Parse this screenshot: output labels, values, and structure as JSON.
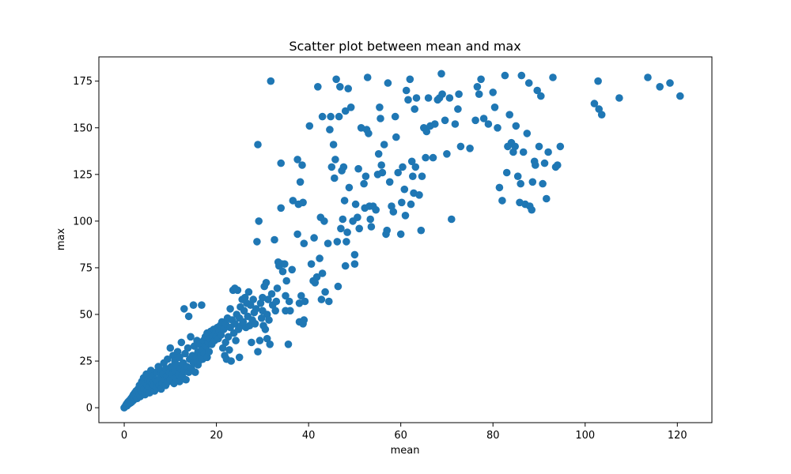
{
  "chart_data": {
    "type": "scatter",
    "title": "Scatter plot between mean and max",
    "xlabel": "mean",
    "ylabel": "max",
    "xlim": [
      -5.5,
      127.5
    ],
    "ylim": [
      -8,
      188
    ],
    "xticks": [
      0,
      20,
      40,
      60,
      80,
      100,
      120
    ],
    "yticks": [
      0,
      25,
      50,
      75,
      100,
      125,
      150,
      175
    ],
    "grid": false,
    "legend": "none",
    "marker_color": "#1f77b4",
    "points": [
      [
        0,
        0
      ],
      [
        0.2,
        0.5
      ],
      [
        0.3,
        1
      ],
      [
        0.4,
        1.5
      ],
      [
        0.5,
        2
      ],
      [
        0.6,
        1
      ],
      [
        0.7,
        2.5
      ],
      [
        0.8,
        3
      ],
      [
        1,
        2
      ],
      [
        1,
        3.5
      ],
      [
        1.2,
        4
      ],
      [
        1.3,
        2.5
      ],
      [
        1.5,
        5
      ],
      [
        1.6,
        3
      ],
      [
        1.8,
        6
      ],
      [
        2,
        4
      ],
      [
        2,
        7
      ],
      [
        2.2,
        5
      ],
      [
        2.3,
        8
      ],
      [
        2.5,
        6
      ],
      [
        2.6,
        9
      ],
      [
        2.8,
        5
      ],
      [
        3,
        7
      ],
      [
        3,
        10
      ],
      [
        3.2,
        8
      ],
      [
        3.3,
        12
      ],
      [
        3.5,
        6
      ],
      [
        3.6,
        9
      ],
      [
        3.8,
        14
      ],
      [
        4,
        8
      ],
      [
        4,
        11
      ],
      [
        4.2,
        16
      ],
      [
        4.3,
        10
      ],
      [
        4.5,
        7
      ],
      [
        4.6,
        13
      ],
      [
        4.8,
        18
      ],
      [
        5,
        9
      ],
      [
        5,
        12
      ],
      [
        5.2,
        15
      ],
      [
        5.4,
        11
      ],
      [
        5.5,
        8
      ],
      [
        5.7,
        14
      ],
      [
        5.8,
        20
      ],
      [
        6,
        10
      ],
      [
        6,
        13
      ],
      [
        6.2,
        17
      ],
      [
        6.4,
        12
      ],
      [
        6.6,
        9
      ],
      [
        6.8,
        15
      ],
      [
        7,
        11
      ],
      [
        7,
        19
      ],
      [
        7.2,
        14
      ],
      [
        7.4,
        22
      ],
      [
        7.6,
        12
      ],
      [
        7.8,
        16
      ],
      [
        8,
        10
      ],
      [
        8,
        20
      ],
      [
        8.2,
        13
      ],
      [
        8.4,
        18
      ],
      [
        8.6,
        24
      ],
      [
        8.8,
        15
      ],
      [
        9,
        12
      ],
      [
        9,
        21
      ],
      [
        9.2,
        17
      ],
      [
        9.4,
        26
      ],
      [
        9.6,
        14
      ],
      [
        9.8,
        19
      ],
      [
        10,
        32
      ],
      [
        10,
        15
      ],
      [
        10.2,
        22
      ],
      [
        10.4,
        18
      ],
      [
        10.6,
        28
      ],
      [
        10.8,
        13
      ],
      [
        11,
        20
      ],
      [
        11,
        25
      ],
      [
        11.2,
        16
      ],
      [
        11.4,
        23
      ],
      [
        11.6,
        30
      ],
      [
        11.8,
        18
      ],
      [
        12,
        14
      ],
      [
        12,
        27
      ],
      [
        12.2,
        21
      ],
      [
        12.4,
        35
      ],
      [
        12.6,
        17
      ],
      [
        12.8,
        24
      ],
      [
        13,
        20
      ],
      [
        13,
        53
      ],
      [
        13.2,
        29
      ],
      [
        13.4,
        15
      ],
      [
        13.6,
        22
      ],
      [
        13.8,
        32
      ],
      [
        14,
        19
      ],
      [
        14,
        49
      ],
      [
        14.2,
        26
      ],
      [
        14.4,
        38
      ],
      [
        14.6,
        21
      ],
      [
        14.8,
        28
      ],
      [
        15,
        24
      ],
      [
        15,
        55
      ],
      [
        15.2,
        33
      ],
      [
        15.4,
        19
      ],
      [
        15.6,
        27
      ],
      [
        15.8,
        36
      ],
      [
        16,
        23
      ],
      [
        16,
        30
      ],
      [
        16.2,
        25
      ],
      [
        16.4,
        34
      ],
      [
        16.6,
        28
      ],
      [
        16.8,
        55
      ],
      [
        17,
        31
      ],
      [
        17,
        26
      ],
      [
        17.2,
        36
      ],
      [
        17.4,
        29
      ],
      [
        17.6,
        38
      ],
      [
        17.8,
        33
      ],
      [
        18,
        27
      ],
      [
        18,
        40
      ],
      [
        18.2,
        35
      ],
      [
        18.4,
        30
      ],
      [
        18.6,
        37
      ],
      [
        18.8,
        41
      ],
      [
        19,
        34
      ],
      [
        19.2,
        38
      ],
      [
        19.4,
        42
      ],
      [
        19.6,
        36
      ],
      [
        19.8,
        40
      ],
      [
        20,
        38
      ],
      [
        20.2,
        43
      ],
      [
        20.4,
        37
      ],
      [
        20.6,
        41
      ],
      [
        20.8,
        44
      ],
      [
        21,
        39
      ],
      [
        21.2,
        46
      ],
      [
        21.4,
        32
      ],
      [
        21.6,
        42
      ],
      [
        21.8,
        28
      ],
      [
        22,
        45
      ],
      [
        22,
        35
      ],
      [
        22.2,
        26
      ],
      [
        22.4,
        48
      ],
      [
        22.6,
        38
      ],
      [
        22.8,
        31
      ],
      [
        23,
        43
      ],
      [
        23,
        53
      ],
      [
        23.2,
        25
      ],
      [
        23.4,
        47
      ],
      [
        23.6,
        63
      ],
      [
        23.8,
        40
      ],
      [
        24,
        45
      ],
      [
        24,
        64
      ],
      [
        24.2,
        36
      ],
      [
        24.4,
        50
      ],
      [
        24.6,
        63
      ],
      [
        24.8,
        42
      ],
      [
        25,
        27
      ],
      [
        25,
        48
      ],
      [
        25.2,
        54
      ],
      [
        25.4,
        44
      ],
      [
        25.6,
        58
      ],
      [
        25.8,
        46
      ],
      [
        26,
        52
      ],
      [
        26.2,
        59
      ],
      [
        26.4,
        43
      ],
      [
        26.6,
        56
      ],
      [
        26.8,
        49
      ],
      [
        27,
        62
      ],
      [
        27.2,
        44
      ],
      [
        27.4,
        55
      ],
      [
        27.6,
        35
      ],
      [
        27.8,
        47
      ],
      [
        28,
        58
      ],
      [
        28.2,
        51
      ],
      [
        28.4,
        45
      ],
      [
        28.6,
        53
      ],
      [
        28.8,
        89
      ],
      [
        29,
        30
      ],
      [
        29,
        141
      ],
      [
        29.2,
        100
      ],
      [
        29.4,
        36
      ],
      [
        29.6,
        56
      ],
      [
        29.8,
        48
      ],
      [
        30,
        52
      ],
      [
        30,
        59
      ],
      [
        30.2,
        44
      ],
      [
        30.4,
        65
      ],
      [
        30.6,
        42
      ],
      [
        30.8,
        67
      ],
      [
        31,
        37
      ],
      [
        31,
        50
      ],
      [
        31.2,
        58
      ],
      [
        31.4,
        47
      ],
      [
        31.6,
        34
      ],
      [
        31.8,
        175
      ],
      [
        32,
        61
      ],
      [
        32.2,
        55
      ],
      [
        32.6,
        90
      ],
      [
        32.8,
        52
      ],
      [
        33,
        57
      ],
      [
        33.2,
        64
      ],
      [
        33.4,
        78
      ],
      [
        33.6,
        76
      ],
      [
        34,
        131
      ],
      [
        34,
        107
      ],
      [
        34.2,
        77
      ],
      [
        34.4,
        73
      ],
      [
        34.8,
        77
      ],
      [
        35,
        52
      ],
      [
        35,
        60
      ],
      [
        35.2,
        68
      ],
      [
        35.6,
        34
      ],
      [
        35.8,
        57
      ],
      [
        36,
        52
      ],
      [
        36.4,
        74
      ],
      [
        36.6,
        111
      ],
      [
        37.6,
        133
      ],
      [
        37.6,
        93
      ],
      [
        37.8,
        109
      ],
      [
        38,
        46
      ],
      [
        38,
        56
      ],
      [
        38.2,
        121
      ],
      [
        38.4,
        60
      ],
      [
        38.6,
        130
      ],
      [
        38.8,
        45
      ],
      [
        38.8,
        110
      ],
      [
        39,
        88
      ],
      [
        39,
        47
      ],
      [
        39.2,
        57
      ],
      [
        40.2,
        151
      ],
      [
        40.6,
        77
      ],
      [
        41,
        68
      ],
      [
        41.2,
        91
      ],
      [
        41.4,
        67
      ],
      [
        41.8,
        70
      ],
      [
        42,
        172
      ],
      [
        42.4,
        80
      ],
      [
        42.6,
        102
      ],
      [
        42.8,
        58
      ],
      [
        43,
        156
      ],
      [
        43,
        72
      ],
      [
        43.4,
        100
      ],
      [
        43.6,
        62
      ],
      [
        44.2,
        88
      ],
      [
        44.4,
        57
      ],
      [
        44.6,
        149
      ],
      [
        44.8,
        156
      ],
      [
        45,
        129
      ],
      [
        45.4,
        141
      ],
      [
        45.6,
        123
      ],
      [
        45.8,
        133
      ],
      [
        46,
        176
      ],
      [
        46.2,
        89
      ],
      [
        46.4,
        65
      ],
      [
        46.6,
        156
      ],
      [
        46.8,
        172
      ],
      [
        47,
        96
      ],
      [
        47.2,
        127
      ],
      [
        47.4,
        101
      ],
      [
        47.6,
        129
      ],
      [
        47.8,
        111
      ],
      [
        48,
        159
      ],
      [
        48,
        76
      ],
      [
        48.2,
        89
      ],
      [
        48.4,
        94
      ],
      [
        48.6,
        171
      ],
      [
        48.8,
        118
      ],
      [
        49.2,
        161
      ],
      [
        49.6,
        100
      ],
      [
        50,
        77
      ],
      [
        50,
        82
      ],
      [
        50.2,
        109
      ],
      [
        50.6,
        102
      ],
      [
        50.8,
        128
      ],
      [
        51,
        96
      ],
      [
        51.4,
        150
      ],
      [
        52,
        120
      ],
      [
        52.2,
        107
      ],
      [
        52.4,
        124
      ],
      [
        52.6,
        149
      ],
      [
        52.8,
        177
      ],
      [
        53,
        147
      ],
      [
        53.2,
        108
      ],
      [
        53.4,
        101
      ],
      [
        53.6,
        97
      ],
      [
        54,
        108
      ],
      [
        54.6,
        106
      ],
      [
        55,
        125
      ],
      [
        55.2,
        136
      ],
      [
        55.4,
        161
      ],
      [
        55.6,
        155
      ],
      [
        55.8,
        130
      ],
      [
        56,
        126
      ],
      [
        56.4,
        141
      ],
      [
        56.8,
        93
      ],
      [
        57,
        95
      ],
      [
        57.2,
        174
      ],
      [
        57.6,
        121
      ],
      [
        58,
        108
      ],
      [
        58.4,
        105
      ],
      [
        58.8,
        156
      ],
      [
        59,
        145
      ],
      [
        59.4,
        126
      ],
      [
        60,
        93
      ],
      [
        60.2,
        110
      ],
      [
        60.4,
        129
      ],
      [
        60.8,
        117
      ],
      [
        61,
        103
      ],
      [
        61.2,
        170
      ],
      [
        61.6,
        165
      ],
      [
        62,
        176
      ],
      [
        62.2,
        109
      ],
      [
        62.4,
        132
      ],
      [
        62.6,
        124
      ],
      [
        62.8,
        115
      ],
      [
        63,
        160
      ],
      [
        63.2,
        129
      ],
      [
        63.4,
        166
      ],
      [
        64,
        114
      ],
      [
        64.4,
        95
      ],
      [
        64.6,
        124
      ],
      [
        65,
        150
      ],
      [
        65.4,
        134
      ],
      [
        65.6,
        148
      ],
      [
        66,
        166
      ],
      [
        66.4,
        151
      ],
      [
        67,
        134
      ],
      [
        67.4,
        152
      ],
      [
        68,
        165
      ],
      [
        68.4,
        166
      ],
      [
        68.8,
        179
      ],
      [
        69,
        168
      ],
      [
        69.6,
        154
      ],
      [
        70,
        136
      ],
      [
        70.6,
        166
      ],
      [
        71,
        101
      ],
      [
        71.8,
        152
      ],
      [
        72.4,
        160
      ],
      [
        72.6,
        168
      ],
      [
        73,
        140
      ],
      [
        75,
        139
      ],
      [
        76.2,
        154
      ],
      [
        76.6,
        172
      ],
      [
        77,
        168
      ],
      [
        77.4,
        176
      ],
      [
        78,
        155
      ],
      [
        79,
        152
      ],
      [
        80,
        169
      ],
      [
        80.4,
        161
      ],
      [
        81,
        150
      ],
      [
        81.4,
        118
      ],
      [
        82,
        111
      ],
      [
        82.6,
        178
      ],
      [
        83,
        126
      ],
      [
        83.2,
        140
      ],
      [
        83.6,
        157
      ],
      [
        84,
        142
      ],
      [
        84.4,
        137
      ],
      [
        84.8,
        140
      ],
      [
        85,
        151
      ],
      [
        85.4,
        124
      ],
      [
        85.8,
        110
      ],
      [
        86,
        120
      ],
      [
        86.2,
        178
      ],
      [
        86.6,
        137
      ],
      [
        87,
        109
      ],
      [
        87.4,
        147
      ],
      [
        87.8,
        174
      ],
      [
        88,
        108
      ],
      [
        88.4,
        106
      ],
      [
        88.6,
        121
      ],
      [
        89,
        132
      ],
      [
        89.2,
        130
      ],
      [
        89.6,
        170
      ],
      [
        90,
        140
      ],
      [
        90.4,
        167
      ],
      [
        90.8,
        120
      ],
      [
        91.2,
        131
      ],
      [
        91.6,
        112
      ],
      [
        92,
        137
      ],
      [
        93,
        177
      ],
      [
        93.6,
        129
      ],
      [
        94,
        130
      ],
      [
        94.6,
        140
      ],
      [
        102,
        163
      ],
      [
        102.8,
        175
      ],
      [
        103,
        160
      ],
      [
        103.6,
        157
      ],
      [
        107.4,
        166
      ],
      [
        113.6,
        177
      ],
      [
        116.2,
        172
      ],
      [
        118.4,
        174
      ],
      [
        120.6,
        167
      ]
    ]
  }
}
